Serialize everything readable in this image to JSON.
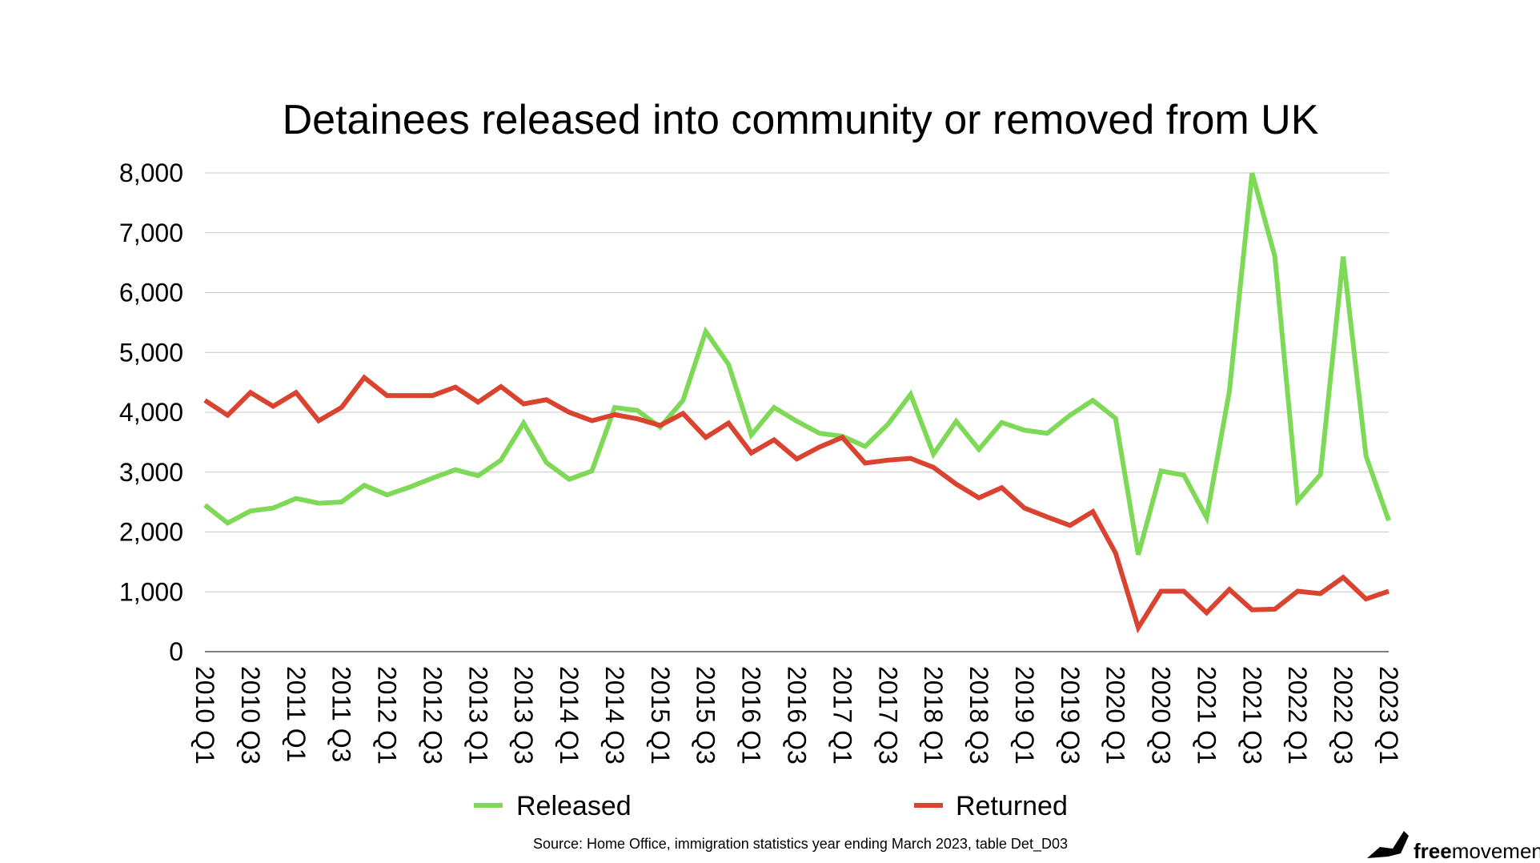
{
  "chart_data": {
    "type": "line",
    "title": "Detainees released into community or removed from UK",
    "xlabel": "",
    "ylabel": "",
    "ylim": [
      0,
      8000
    ],
    "yticks": [
      0,
      1000,
      2000,
      3000,
      4000,
      5000,
      6000,
      7000,
      8000
    ],
    "ytick_labels": [
      "0",
      "1,000",
      "2,000",
      "3,000",
      "4,000",
      "5,000",
      "6,000",
      "7,000",
      "8,000"
    ],
    "categories": [
      "2010 Q1",
      "2010 Q2",
      "2010 Q3",
      "2010 Q4",
      "2011 Q1",
      "2011 Q2",
      "2011 Q3",
      "2011 Q4",
      "2012 Q1",
      "2012 Q2",
      "2012 Q3",
      "2012 Q4",
      "2013 Q1",
      "2013 Q2",
      "2013 Q3",
      "2013 Q4",
      "2014 Q1",
      "2014 Q2",
      "2014 Q3",
      "2014 Q4",
      "2015 Q1",
      "2015 Q2",
      "2015 Q3",
      "2015 Q4",
      "2016 Q1",
      "2016 Q2",
      "2016 Q3",
      "2016 Q4",
      "2017 Q1",
      "2017 Q2",
      "2017 Q3",
      "2017 Q4",
      "2018 Q1",
      "2018 Q2",
      "2018 Q3",
      "2018 Q4",
      "2019 Q1",
      "2019 Q2",
      "2019 Q3",
      "2019 Q4",
      "2020 Q1",
      "2020 Q2",
      "2020 Q3",
      "2020 Q4",
      "2021 Q1",
      "2021 Q2",
      "2021 Q3",
      "2021 Q4",
      "2022 Q1",
      "2022 Q2",
      "2022 Q3",
      "2022 Q4",
      "2023 Q1"
    ],
    "tick_labels": [
      "2010 Q1",
      "2010 Q3",
      "2011 Q1",
      "2011 Q3",
      "2012 Q1",
      "2012 Q3",
      "2013 Q1",
      "2013 Q3",
      "2014 Q1",
      "2014 Q3",
      "2015 Q1",
      "2015 Q3",
      "2016 Q1",
      "2016 Q3",
      "2017 Q1",
      "2017 Q3",
      "2018 Q1",
      "2018 Q3",
      "2019 Q1",
      "2019 Q3",
      "2020 Q1",
      "2020 Q3",
      "2021 Q1",
      "2021 Q3",
      "2022 Q1",
      "2022 Q3",
      "2023 Q1"
    ],
    "series": [
      {
        "name": "Released",
        "color": "#7ed957",
        "values": [
          2450,
          2150,
          2350,
          2400,
          2560,
          2480,
          2500,
          2780,
          2620,
          2750,
          2900,
          3040,
          2940,
          3200,
          3820,
          3160,
          2880,
          3020,
          4080,
          4030,
          3750,
          4200,
          5350,
          4800,
          3620,
          4080,
          3850,
          3650,
          3600,
          3430,
          3800,
          4300,
          3300,
          3850,
          3380,
          3830,
          3700,
          3650,
          3950,
          4200,
          3900,
          1620,
          3020,
          2950,
          2240,
          4350,
          8000,
          6600,
          2520,
          2960,
          6600,
          3270,
          2190
        ]
      },
      {
        "name": "Returned",
        "color": "#d9432f",
        "values": [
          4200,
          3950,
          4330,
          4100,
          4330,
          3860,
          4080,
          4580,
          4280,
          4280,
          4280,
          4420,
          4170,
          4430,
          4140,
          4210,
          4000,
          3860,
          3960,
          3890,
          3780,
          3980,
          3580,
          3820,
          3320,
          3540,
          3220,
          3420,
          3580,
          3150,
          3200,
          3230,
          3080,
          2800,
          2570,
          2740,
          2400,
          2250,
          2110,
          2340,
          1650,
          400,
          1010,
          1010,
          650,
          1040,
          700,
          710,
          1010,
          970,
          1240,
          880,
          1010
        ]
      }
    ],
    "legend_position": "bottom",
    "grid": true
  },
  "source_text": "Source: Home Office, immigration statistics year ending March 2023, table Det_D03",
  "brand": {
    "name_bold": "free",
    "name_rest": "movement",
    "logo_icon": "bird-icon"
  }
}
